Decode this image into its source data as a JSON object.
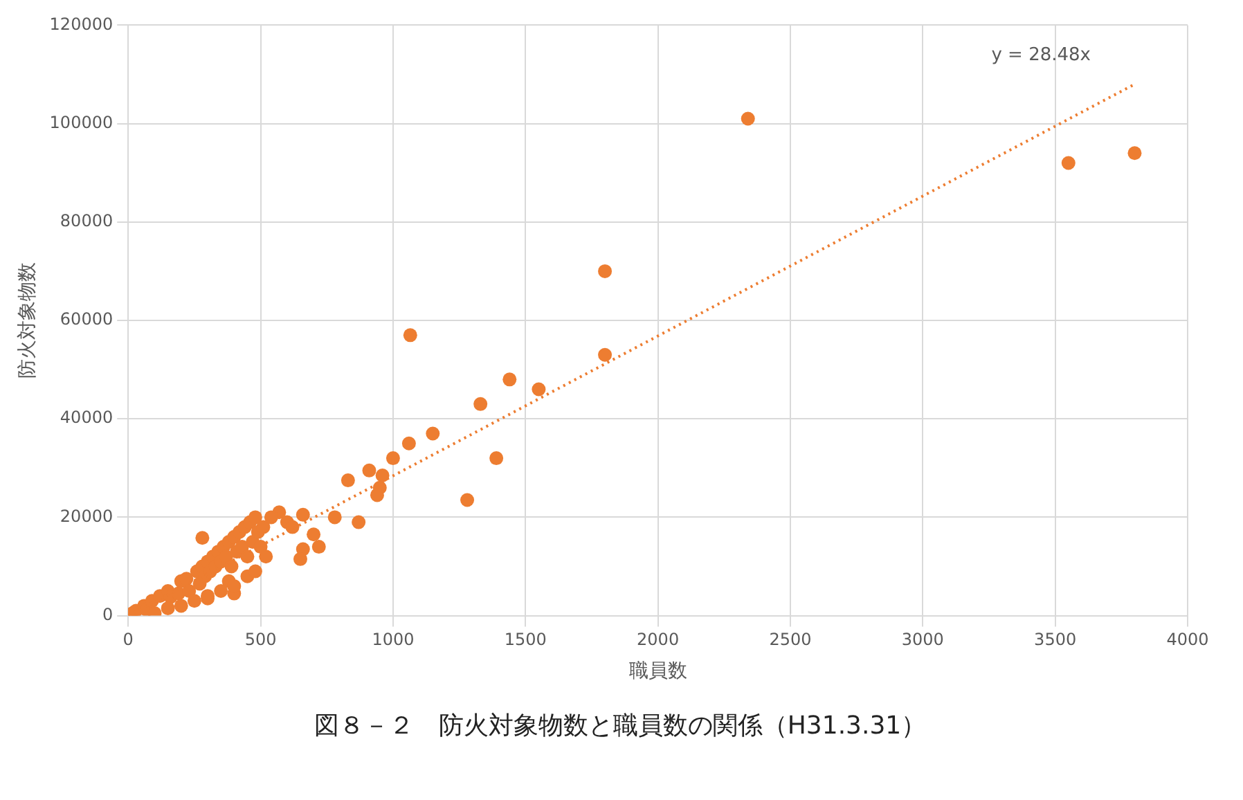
{
  "chart_data": {
    "type": "scatter",
    "title": "図８－２　防火対象物数と職員数の関係（H31.3.31）",
    "xlabel": "職員数",
    "ylabel": "防火対象物数",
    "xlim": [
      0,
      4000
    ],
    "xticks": [
      0,
      500,
      1000,
      1500,
      2000,
      2500,
      3000,
      3500,
      4000
    ],
    "ylim": [
      0,
      120000
    ],
    "yticks": [
      0,
      20000,
      40000,
      60000,
      80000,
      100000,
      120000
    ],
    "grid": true,
    "marker": "circle",
    "annotations": [
      "y = 28.48x"
    ],
    "series": [
      {
        "color": "#ed7d31",
        "x": [
          10,
          20,
          30,
          60,
          70,
          90,
          120,
          150,
          160,
          190,
          200,
          220,
          230,
          260,
          270,
          280,
          290,
          300,
          310,
          320,
          330,
          340,
          350,
          360,
          370,
          380,
          390,
          400,
          410,
          420,
          430,
          440,
          450,
          460,
          470,
          480,
          490,
          500,
          510,
          520,
          280,
          150,
          250,
          350,
          400,
          450,
          480,
          300,
          380,
          100,
          200,
          300,
          400,
          2340,
          3550,
          3800,
          1800,
          1800,
          1065,
          1440,
          1550,
          1330,
          1150,
          1060,
          1390,
          1000,
          960,
          910,
          830,
          950,
          940,
          1280,
          870,
          780,
          660,
          700,
          720,
          660,
          650,
          570,
          540,
          600,
          620
        ],
        "values": [
          300,
          600,
          1000,
          2000,
          1200,
          3000,
          4000,
          5000,
          3800,
          4500,
          7000,
          7500,
          5000,
          9000,
          6500,
          10000,
          8000,
          11000,
          9000,
          12000,
          10000,
          13000,
          11000,
          14000,
          12000,
          15000,
          10000,
          16000,
          13000,
          17000,
          14000,
          18000,
          12000,
          19000,
          15000,
          20000,
          17000,
          14000,
          18000,
          12000,
          15800,
          1500,
          3000,
          5000,
          4500,
          8000,
          9000,
          3500,
          7000,
          500,
          2000,
          4000,
          6000,
          101000,
          92000,
          94000,
          70000,
          53000,
          57000,
          48000,
          46000,
          43000,
          37000,
          35000,
          32000,
          32000,
          28500,
          29500,
          27500,
          26000,
          24500,
          23500,
          19000,
          20000,
          20500,
          16500,
          14000,
          13500,
          11500,
          21000,
          20000,
          19000,
          18000
        ]
      },
      {
        "type": "line",
        "color": "#ed7d31",
        "line_style": "dotted",
        "marker": "none",
        "x": [
          0,
          3800
        ],
        "values": [
          0,
          108000
        ]
      }
    ]
  }
}
